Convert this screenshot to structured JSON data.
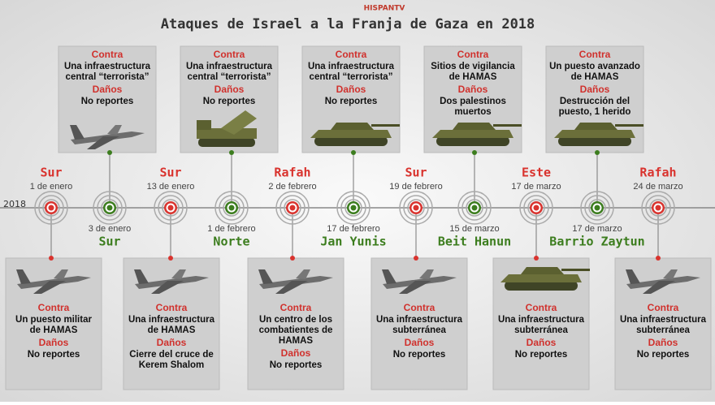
{
  "header": {
    "title": "Ataques de Israel a la Franja de Gaza en 2018",
    "logo": "HISPANTV"
  },
  "year": "2018",
  "labels": {
    "against": "Contra",
    "damage": "Daños"
  },
  "events": [
    {
      "place": "Sur",
      "date": "1 de enero",
      "target": [
        "Un puesto militar",
        "de HAMAS"
      ],
      "damage": [
        "No reportes"
      ]
    },
    {
      "place": "Sur",
      "date": "3 de enero",
      "target": [
        "Una infraestructura",
        "central “terrorista”"
      ],
      "damage": [
        "No reportes"
      ]
    },
    {
      "place": "Sur",
      "date": "13 de enero",
      "target": [
        "Una infraestructura",
        "de HAMAS"
      ],
      "damage": [
        "Cierre del cruce de",
        "Kerem Shalom"
      ]
    },
    {
      "place": "Norte",
      "date": "1 de febrero",
      "target": [
        "Una infraestructura",
        "central “terrorista”"
      ],
      "damage": [
        "No reportes"
      ]
    },
    {
      "place": "Rafah",
      "date": "2 de febrero",
      "target": [
        "Un centro de los",
        "combatientes de",
        "HAMAS"
      ],
      "damage": [
        "No reportes"
      ]
    },
    {
      "place": "Jan Yunis",
      "date": "17 de febrero",
      "target": [
        "Una infraestructura",
        "central “terrorista”"
      ],
      "damage": [
        "No reportes"
      ]
    },
    {
      "place": "Sur",
      "date": "19 de febrero",
      "target": [
        "Una infraestructura",
        "subterránea"
      ],
      "damage": [
        "No reportes"
      ]
    },
    {
      "place": "Beit Hanun",
      "date": "15 de marzo",
      "target": [
        "Sitios de vigilancia",
        "de HAMAS"
      ],
      "damage": [
        "Dos palestinos",
        "muertos"
      ]
    },
    {
      "place": "Este",
      "date": "17 de marzo",
      "target": [
        "Una infraestructura",
        "subterránea"
      ],
      "damage": [
        "No reportes"
      ]
    },
    {
      "place": "Barrio Zaytun",
      "date": "17 de marzo",
      "target": [
        "Un puesto avanzado",
        "de HAMAS"
      ],
      "damage": [
        "Destrucción del",
        "puesto, 1 herido"
      ]
    },
    {
      "place": "Rafah",
      "date": "24 de marzo",
      "target": [
        "Una infraestructura",
        "subterránea"
      ],
      "damage": [
        "No reportes"
      ]
    }
  ]
}
